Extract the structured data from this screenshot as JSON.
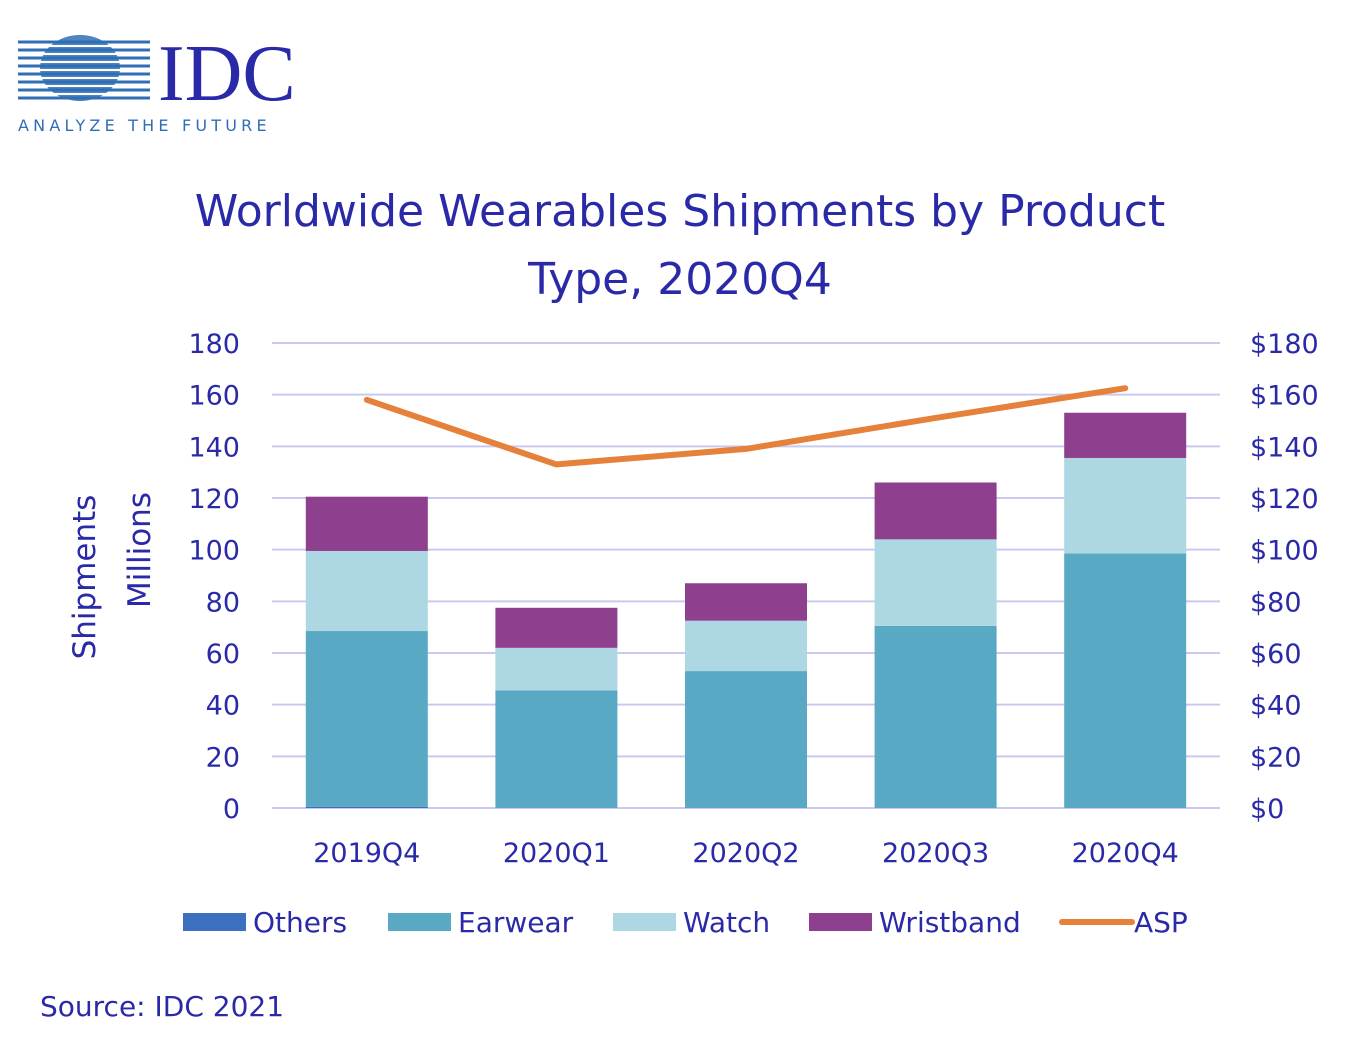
{
  "brand": {
    "name": "IDC",
    "tagline": "ANALYZE THE FUTURE"
  },
  "source": "Source: IDC 2021",
  "colors": {
    "text": "#2a2aa8",
    "grid": "#c9c9f0",
    "others": "#3d6fbf",
    "earwear": "#5aa9c4",
    "watch": "#acd7e3",
    "wristband": "#8e3f8e",
    "asp": "#e5813a"
  },
  "chart_data": {
    "type": "bar",
    "stacked": true,
    "title": "Worldwide Wearables Shipments by Product Type, 2020Q4",
    "title_lines": [
      "Worldwide Wearables Shipments by Product",
      "Type, 2020Q4"
    ],
    "ylabel_lines": [
      "Shipments",
      "Millions"
    ],
    "y2label": "",
    "categories": [
      "2019Q4",
      "2020Q1",
      "2020Q2",
      "2020Q3",
      "2020Q4"
    ],
    "ylim": [
      0,
      180
    ],
    "y_ticks": [
      "0",
      "20",
      "40",
      "60",
      "80",
      "100",
      "120",
      "140",
      "160",
      "180"
    ],
    "y2lim": [
      0,
      180
    ],
    "y2_ticks": [
      "$0",
      "$20",
      "$40",
      "$60",
      "$80",
      "$100",
      "$120",
      "$140",
      "$160",
      "$180"
    ],
    "grid": true,
    "legend_position": "bottom",
    "series": [
      {
        "name": "Others",
        "color_key": "others",
        "values": [
          0.5,
          0,
          0,
          0,
          0
        ]
      },
      {
        "name": "Earwear",
        "color_key": "earwear",
        "values": [
          68,
          45.5,
          53,
          70.5,
          98.5
        ]
      },
      {
        "name": "Watch",
        "color_key": "watch",
        "values": [
          31,
          16.5,
          19.5,
          33.5,
          37
        ]
      },
      {
        "name": "Wristband",
        "color_key": "wristband",
        "values": [
          21,
          15.5,
          14.5,
          22,
          17.5
        ]
      }
    ],
    "line_series": {
      "name": "ASP",
      "color_key": "asp",
      "axis": "right",
      "values": [
        158,
        133,
        139,
        151,
        162.5
      ]
    }
  }
}
